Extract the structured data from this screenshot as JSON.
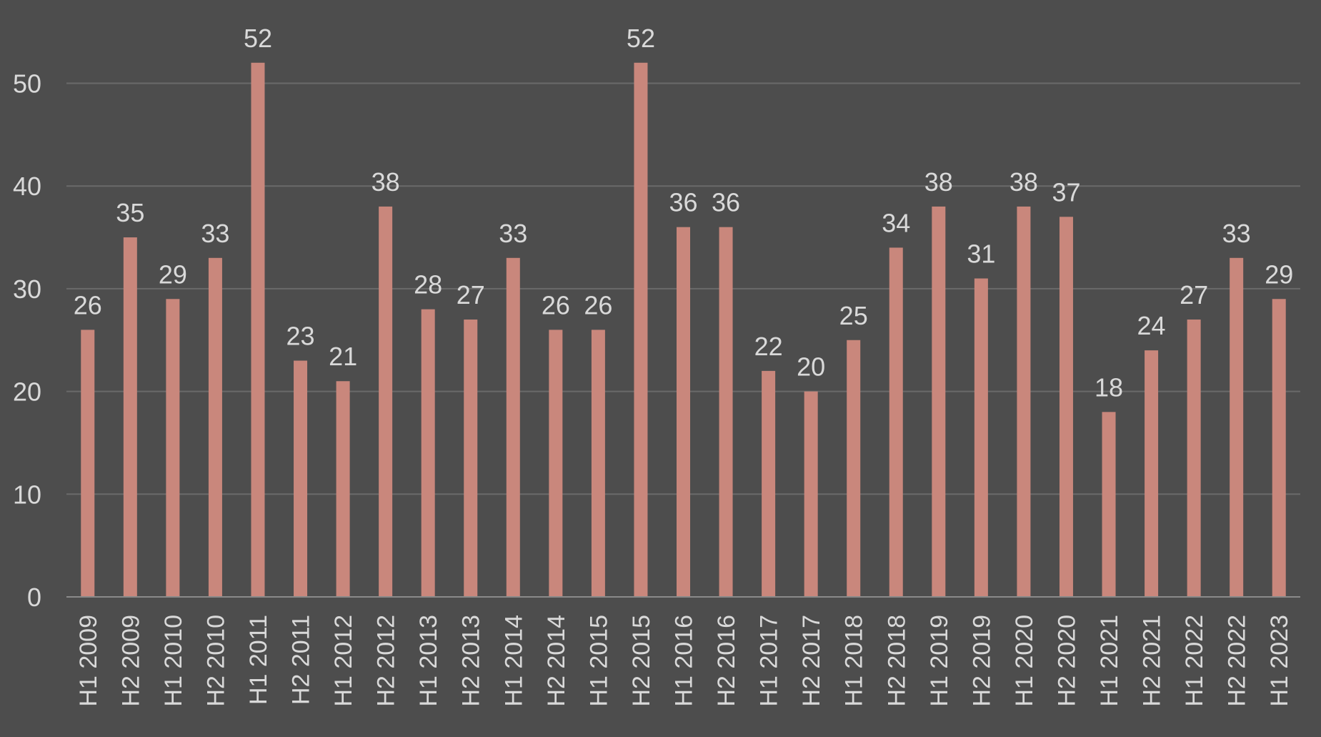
{
  "chart_data": {
    "type": "bar",
    "title": "",
    "xlabel": "",
    "ylabel": "",
    "categories": [
      "H1 2009",
      "H2 2009",
      "H1 2010",
      "H2 2010",
      "H1 2011",
      "H2 2011",
      "H1 2012",
      "H2 2012",
      "H1 2013",
      "H2 2013",
      "H1 2014",
      "H2 2014",
      "H1 2015",
      "H2 2015",
      "H1 2016",
      "H2 2016",
      "H1 2017",
      "H2 2017",
      "H1 2018",
      "H2 2018",
      "H1 2019",
      "H2 2019",
      "H1 2020",
      "H2 2020",
      "H1 2021",
      "H2 2021",
      "H1 2022",
      "H2 2022",
      "H1 2023"
    ],
    "values": [
      26,
      35,
      29,
      33,
      52,
      23,
      21,
      38,
      28,
      27,
      33,
      26,
      26,
      52,
      36,
      36,
      22,
      20,
      25,
      34,
      38,
      31,
      38,
      37,
      18,
      24,
      27,
      33,
      29
    ],
    "data_labels": [
      "26",
      "35",
      "29",
      "33",
      "52",
      "23",
      "21",
      "38",
      "28",
      "27",
      "33",
      "26",
      "26",
      "52",
      "36",
      "36",
      "22",
      "20",
      "25",
      "34",
      "38",
      "31",
      "38",
      "37",
      "18",
      "24",
      "27",
      "33",
      "29"
    ],
    "ylim": [
      0,
      52
    ],
    "yticks": [
      "0",
      "10",
      "20",
      "30",
      "40",
      "50"
    ],
    "ytick_values": [
      0,
      10,
      20,
      30,
      40,
      50
    ],
    "grid": true,
    "legend": "none",
    "colors": {
      "background": "#4d4d4d",
      "bar": "#c9877c",
      "gridline": "#6a6a6a",
      "axis": "#8a8a8a",
      "text": "#d9d9d9"
    }
  }
}
